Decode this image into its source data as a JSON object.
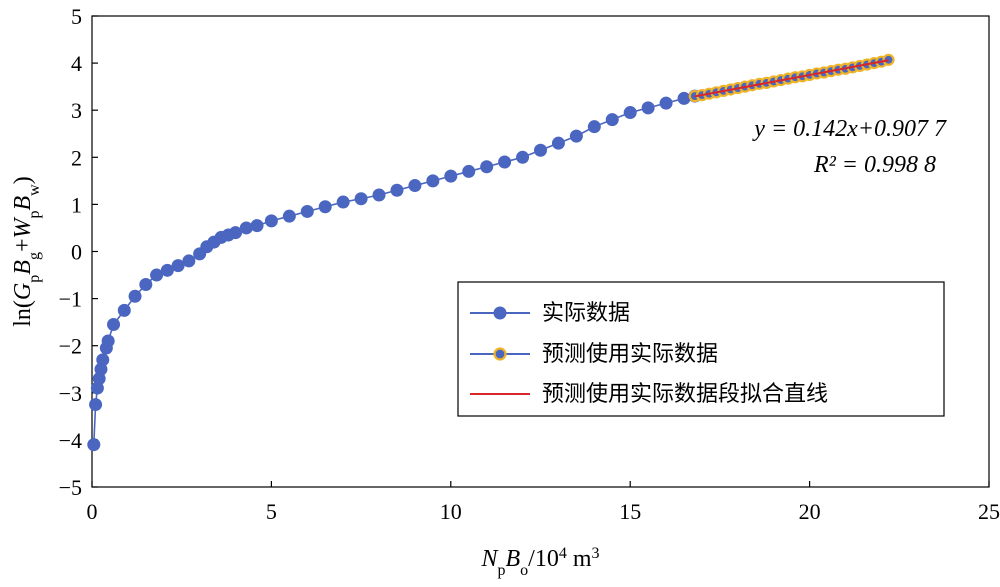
{
  "chart_data": {
    "type": "scatter",
    "xlabel": "NpBo/10⁴ m³",
    "ylabel": "ln(GpBg+WpBw)",
    "xlim": [
      0,
      25
    ],
    "ylim": [
      -5,
      5
    ],
    "xticks": [
      0,
      5,
      10,
      15,
      20,
      25
    ],
    "yticks": [
      -5,
      -4,
      -3,
      -2,
      -1,
      0,
      1,
      2,
      3,
      4,
      5
    ],
    "xtick_labels": [
      "0",
      "5",
      "10",
      "15",
      "20",
      "25"
    ],
    "ytick_labels": [
      "−5",
      "−4",
      "−3",
      "−2",
      "−1",
      "0",
      "1",
      "2",
      "3",
      "4",
      "5"
    ],
    "grid": false,
    "legend_position": "center-right",
    "annotation": {
      "equation": "y = 0.142x+0.907 7",
      "r_squared": "R² = 0.998 8"
    },
    "series": [
      {
        "name": "实际数据",
        "style": "line-marker",
        "color": "#4a66c0",
        "x": [
          0.05,
          0.1,
          0.15,
          0.2,
          0.25,
          0.3,
          0.4,
          0.45,
          0.6,
          0.9,
          1.2,
          1.5,
          1.8,
          2.1,
          2.4,
          2.7,
          3.0,
          3.2,
          3.4,
          3.6,
          3.8,
          4.0,
          4.3,
          4.6,
          5.0,
          5.5,
          6.0,
          6.5,
          7.0,
          7.5,
          8.0,
          8.5,
          9.0,
          9.5,
          10.0,
          10.5,
          11.0,
          11.5,
          12.0,
          12.5,
          13.0,
          13.5,
          14.0,
          14.5,
          15.0,
          15.5,
          16.0,
          16.5,
          16.8
        ],
        "y": [
          -4.1,
          -3.25,
          -2.9,
          -2.7,
          -2.5,
          -2.3,
          -2.05,
          -1.9,
          -1.55,
          -1.25,
          -0.95,
          -0.7,
          -0.5,
          -0.4,
          -0.3,
          -0.2,
          -0.05,
          0.1,
          0.2,
          0.3,
          0.35,
          0.4,
          0.5,
          0.55,
          0.65,
          0.75,
          0.85,
          0.95,
          1.05,
          1.12,
          1.2,
          1.3,
          1.4,
          1.5,
          1.6,
          1.7,
          1.8,
          1.9,
          2.0,
          2.15,
          2.3,
          2.45,
          2.65,
          2.8,
          2.95,
          3.05,
          3.15,
          3.25,
          3.3
        ]
      },
      {
        "name": "预测使用实际数据",
        "style": "line-marker",
        "color": "#4a66c0",
        "marker_edge": "#f0b428",
        "x": [
          16.8,
          17.0,
          17.2,
          17.4,
          17.6,
          17.8,
          18.0,
          18.2,
          18.4,
          18.6,
          18.8,
          19.0,
          19.2,
          19.4,
          19.6,
          19.8,
          20.0,
          20.2,
          20.4,
          20.6,
          20.8,
          21.0,
          21.2,
          21.4,
          21.6,
          21.8,
          22.0,
          22.2
        ],
        "y": [
          3.3,
          3.32,
          3.35,
          3.38,
          3.41,
          3.44,
          3.47,
          3.5,
          3.53,
          3.56,
          3.58,
          3.61,
          3.64,
          3.67,
          3.7,
          3.72,
          3.75,
          3.78,
          3.8,
          3.83,
          3.86,
          3.88,
          3.91,
          3.94,
          3.97,
          4.0,
          4.03,
          4.07
        ]
      },
      {
        "name": "预测使用实际数据段拟合直线",
        "style": "line",
        "color": "#d9262a",
        "x": [
          16.8,
          22.2
        ],
        "y": [
          3.293,
          4.06
        ]
      }
    ]
  }
}
